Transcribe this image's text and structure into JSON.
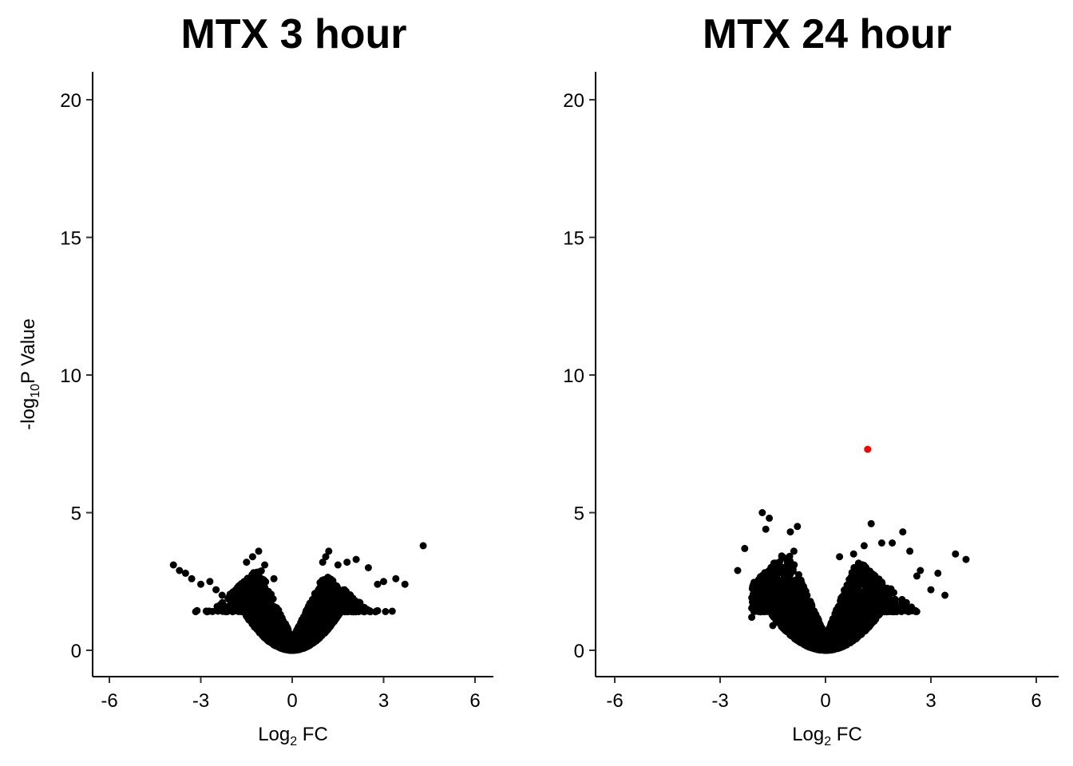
{
  "chart_data": [
    {
      "type": "scatter",
      "title": "MTX 3 hour",
      "xlabel": "Log",
      "xlabel_sub": "2",
      "xlabel_suffix": " FC",
      "ylabel": "-log",
      "ylabel_sub": "10",
      "ylabel_suffix": "P Value",
      "xlim": [
        -6.6,
        6.6
      ],
      "ylim": [
        -0.9,
        21
      ],
      "xticks": [
        -6,
        -3,
        0,
        3,
        6
      ],
      "xtick_labels": [
        "-6",
        "-3",
        "0",
        "3",
        "6"
      ],
      "yticks": [
        0,
        5,
        10,
        15,
        20
      ],
      "ytick_labels": [
        "0",
        "5",
        "10",
        "15",
        "20"
      ],
      "grid": false,
      "point_color": "#000000",
      "highlight_color": "#ff0000",
      "cloud": {
        "n": 2600,
        "neg_shoulder": [
          -1.2,
          2.9
        ],
        "pos_shoulder": [
          1.2,
          2.7
        ],
        "neg_extent": -3.2,
        "pos_extent": 3.4
      },
      "points": [
        {
          "x": -3.9,
          "y": 3.1
        },
        {
          "x": -3.7,
          "y": 2.9
        },
        {
          "x": -3.5,
          "y": 2.8
        },
        {
          "x": -3.3,
          "y": 2.6
        },
        {
          "x": -3.0,
          "y": 2.4
        },
        {
          "x": -2.7,
          "y": 2.5
        },
        {
          "x": -2.5,
          "y": 2.2
        },
        {
          "x": -2.3,
          "y": 2.0
        },
        {
          "x": -1.5,
          "y": 3.2
        },
        {
          "x": -1.3,
          "y": 3.4
        },
        {
          "x": -1.1,
          "y": 3.6
        },
        {
          "x": -0.9,
          "y": 3.1
        },
        {
          "x": -0.6,
          "y": 2.6
        },
        {
          "x": 1.0,
          "y": 3.2
        },
        {
          "x": 1.1,
          "y": 3.4
        },
        {
          "x": 1.2,
          "y": 3.6
        },
        {
          "x": 1.5,
          "y": 3.1
        },
        {
          "x": 1.8,
          "y": 3.2
        },
        {
          "x": 2.1,
          "y": 3.3
        },
        {
          "x": 2.5,
          "y": 3.0
        },
        {
          "x": 2.8,
          "y": 2.4
        },
        {
          "x": 3.0,
          "y": 2.5
        },
        {
          "x": 3.4,
          "y": 2.6
        },
        {
          "x": 3.7,
          "y": 2.4
        },
        {
          "x": 4.3,
          "y": 3.8
        }
      ],
      "highlighted": []
    },
    {
      "type": "scatter",
      "title": "MTX 24 hour",
      "xlabel": "Log",
      "xlabel_sub": "2",
      "xlabel_suffix": " FC",
      "xlim": [
        -6.6,
        6.6
      ],
      "ylim": [
        -0.9,
        21
      ],
      "xticks": [
        -6,
        -3,
        0,
        3,
        6
      ],
      "xtick_labels": [
        "-6",
        "-3",
        "0",
        "3",
        "6"
      ],
      "yticks": [
        0,
        5,
        10,
        15,
        20
      ],
      "ytick_labels": [
        "0",
        "5",
        "10",
        "15",
        "20"
      ],
      "grid": false,
      "point_color": "#000000",
      "highlight_color": "#ff0000",
      "cloud": {
        "n": 2600,
        "neg_shoulder": [
          -1.2,
          3.5
        ],
        "pos_shoulder": [
          1.0,
          3.2
        ],
        "neg_extent": -2.1,
        "pos_extent": 3.0
      },
      "points": [
        {
          "x": -2.5,
          "y": 2.9
        },
        {
          "x": -2.3,
          "y": 3.7
        },
        {
          "x": -2.1,
          "y": 1.2
        },
        {
          "x": -1.8,
          "y": 5.0
        },
        {
          "x": -1.7,
          "y": 4.4
        },
        {
          "x": -1.6,
          "y": 4.8
        },
        {
          "x": -1.5,
          "y": 0.9
        },
        {
          "x": -1.0,
          "y": 4.3
        },
        {
          "x": -0.8,
          "y": 4.5
        },
        {
          "x": -0.9,
          "y": 3.6
        },
        {
          "x": 0.4,
          "y": 3.4
        },
        {
          "x": 0.8,
          "y": 3.5
        },
        {
          "x": 1.1,
          "y": 3.8
        },
        {
          "x": 1.3,
          "y": 4.6
        },
        {
          "x": 1.6,
          "y": 3.9
        },
        {
          "x": 1.9,
          "y": 3.9
        },
        {
          "x": 2.2,
          "y": 4.3
        },
        {
          "x": 2.4,
          "y": 3.6
        },
        {
          "x": 2.6,
          "y": 2.7
        },
        {
          "x": 2.7,
          "y": 2.9
        },
        {
          "x": 3.2,
          "y": 2.8
        },
        {
          "x": 3.0,
          "y": 2.2
        },
        {
          "x": 3.4,
          "y": 2.0
        },
        {
          "x": 3.7,
          "y": 3.5
        },
        {
          "x": 4.0,
          "y": 3.3
        }
      ],
      "highlighted": [
        {
          "x": 1.2,
          "y": 7.3
        }
      ]
    }
  ]
}
